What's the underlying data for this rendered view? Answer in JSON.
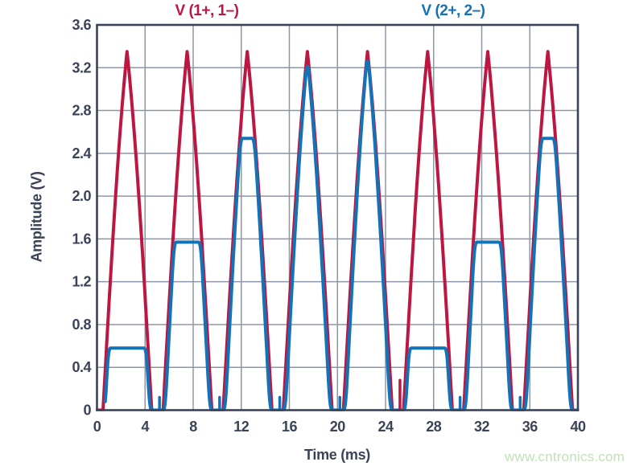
{
  "watermark": "www.cntronics.com",
  "chart_data": {
    "type": "line",
    "title": "",
    "xlabel": "Time (ms)",
    "ylabel": "Amplitude (V)",
    "xlim": [
      0,
      40
    ],
    "ylim": [
      0,
      3.6
    ],
    "grid": true,
    "legend_position": "top",
    "x_ticks": [
      0,
      4,
      8,
      12,
      16,
      20,
      24,
      28,
      32,
      36,
      40
    ],
    "x_tick_labels": [
      "0",
      "4",
      "8",
      "12",
      "16",
      "20",
      "24",
      "28",
      "32",
      "36",
      "40"
    ],
    "y_ticks": [
      0,
      0.4,
      0.8,
      1.2,
      1.6,
      2.0,
      2.4,
      2.8,
      3.2,
      3.6
    ],
    "y_tick_labels": [
      "0",
      "0.4",
      "0.8",
      "1.2",
      "1.6",
      "2.0",
      "2.4",
      "2.8",
      "3.2",
      "3.6"
    ],
    "colors": {
      "series1": "#bd1741",
      "series2": "#1273b8",
      "axis": "#3a4357",
      "grid": "#8e95a5",
      "text": "#3a4357",
      "watermark": "#bfe3b4"
    },
    "series": [
      {
        "name": "V (1+, 1–)",
        "color": "#bd1741",
        "waveform": {
          "period_ms": 5,
          "cycles": 8,
          "rise_start_ms": 0.5,
          "peak_ms": 2.5,
          "fall_end_ms": 4.55,
          "baseline_v": 0,
          "trace_start_ms": 0,
          "peak_times_ms": [
            2.5,
            7.5,
            12.5,
            17.5,
            22.5,
            27.5,
            32.5,
            37.5
          ],
          "peak_values_v": [
            3.35,
            3.35,
            3.35,
            3.35,
            3.35,
            3.35,
            3.35,
            3.35
          ],
          "clamp_levels_v": [
            3.35,
            3.35,
            3.35,
            3.35,
            3.35,
            3.35,
            3.35,
            3.35
          ],
          "spikes": [
            {
              "t_ms": 25.2,
              "height_v": 0.28
            }
          ]
        }
      },
      {
        "name": "V (2+, 2–)",
        "color": "#1273b8",
        "waveform": {
          "period_ms": 5,
          "cycles": 8,
          "rise_start_ms": 0.68,
          "peak_ms": 2.5,
          "fall_end_ms": 4.38,
          "baseline_v": 0,
          "trace_start_ms": 0.68,
          "peak_times_ms": [
            2.5,
            7.5,
            12.5,
            17.5,
            22.5,
            27.5,
            32.5,
            37.5
          ],
          "peak_values_v": [
            0.58,
            1.57,
            2.54,
            3.3,
            3.35,
            0.58,
            1.57,
            2.54
          ],
          "clamp_levels_v": [
            0.58,
            1.57,
            2.54,
            3.3,
            3.35,
            0.58,
            1.57,
            2.54
          ],
          "spikes": [
            {
              "t_ms": 5.2,
              "height_v": 0.12
            },
            {
              "t_ms": 10.2,
              "height_v": 0.12
            },
            {
              "t_ms": 15.2,
              "height_v": 0.12
            },
            {
              "t_ms": 20.2,
              "height_v": 0.12
            },
            {
              "t_ms": 30.2,
              "height_v": 0.12
            },
            {
              "t_ms": 35.2,
              "height_v": 0.12
            }
          ]
        }
      }
    ]
  }
}
